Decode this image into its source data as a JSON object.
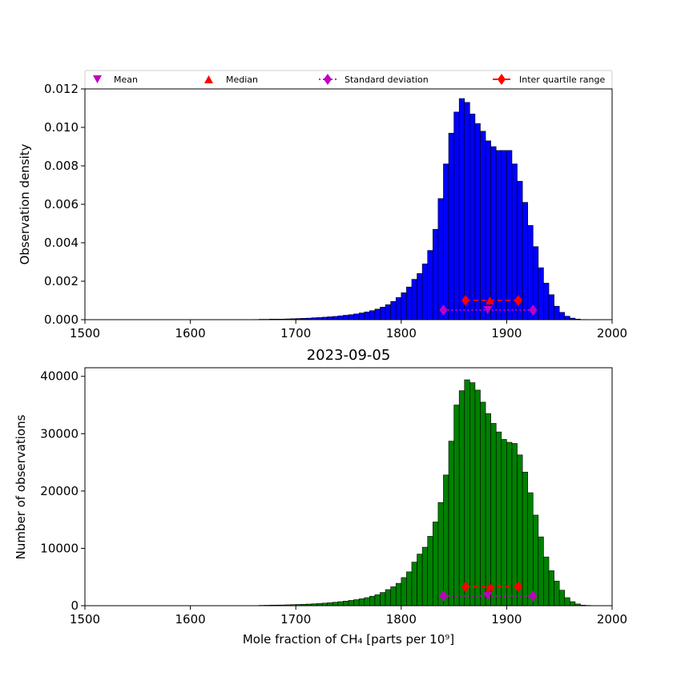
{
  "chart_data": [
    {
      "type": "bar",
      "panel": "top",
      "title": "",
      "xlabel": "",
      "ylabel": "Observation density",
      "xlim": [
        1500,
        2000
      ],
      "ylim": [
        0,
        0.012
      ],
      "xticks": [
        "1500",
        "1600",
        "1700",
        "1800",
        "1900",
        "2000"
      ],
      "yticks": [
        "0.000",
        "0.002",
        "0.004",
        "0.006",
        "0.008",
        "0.010",
        "0.012"
      ],
      "bar_color": "#0000ff",
      "bin_start": 1660,
      "bin_width": 5,
      "values": [
        1e-05,
        2e-05,
        2e-05,
        3e-05,
        3e-05,
        3e-05,
        4e-05,
        5e-05,
        6e-05,
        7e-05,
        8e-05,
        0.0001,
        0.00011,
        0.00013,
        0.00015,
        0.00017,
        0.0002,
        0.00023,
        0.00026,
        0.0003,
        0.00035,
        0.0004,
        0.00047,
        0.00055,
        0.00065,
        0.00078,
        0.00095,
        0.00115,
        0.0014,
        0.0017,
        0.0021,
        0.0024,
        0.0029,
        0.0036,
        0.0047,
        0.0063,
        0.0081,
        0.0097,
        0.0108,
        0.0115,
        0.0113,
        0.0107,
        0.0102,
        0.0098,
        0.0093,
        0.009,
        0.0088,
        0.0088,
        0.0088,
        0.0081,
        0.0072,
        0.0061,
        0.0049,
        0.0038,
        0.0027,
        0.0019,
        0.0013,
        0.0007,
        0.00038,
        0.00018,
        8e-05,
        3e-05,
        1e-05,
        5e-06
      ],
      "stats": {
        "mean": 1882,
        "median": 1884,
        "std_range": [
          1840,
          1925
        ],
        "iqr_range": [
          1861,
          1911
        ],
        "std_y": 0.0005,
        "iqr_y": 0.001
      }
    },
    {
      "type": "bar",
      "panel": "bottom",
      "title": "2023-09-05",
      "xlabel": "Mole fraction of CH₄ [parts per 10⁹]",
      "ylabel": "Number of observations",
      "xlim": [
        1500,
        2000
      ],
      "ylim": [
        0,
        41500
      ],
      "xticks": [
        "1500",
        "1600",
        "1700",
        "1800",
        "1900",
        "2000"
      ],
      "yticks": [
        "0",
        "10000",
        "20000",
        "30000",
        "40000"
      ],
      "bar_color": "#008000",
      "bin_start": 1660,
      "bin_width": 5,
      "values": [
        30,
        60,
        80,
        100,
        110,
        120,
        150,
        180,
        210,
        250,
        280,
        330,
        380,
        450,
        520,
        600,
        700,
        800,
        920,
        1050,
        1200,
        1400,
        1650,
        1900,
        2300,
        2800,
        3300,
        3900,
        4900,
        5900,
        7600,
        9000,
        10200,
        12100,
        14600,
        18000,
        22800,
        28700,
        35000,
        37500,
        39400,
        38900,
        37600,
        35500,
        33500,
        31800,
        30300,
        29000,
        28500,
        28300,
        26300,
        23300,
        19700,
        15800,
        12000,
        8500,
        6100,
        4300,
        2700,
        1400,
        700,
        300,
        100,
        50
      ],
      "stats": {
        "mean": 1882,
        "median": 1884,
        "std_range": [
          1840,
          1925
        ],
        "iqr_range": [
          1861,
          1911
        ],
        "std_y": 1700,
        "iqr_y": 3300
      }
    }
  ],
  "legend": {
    "placement": "above-top-panel",
    "entries": [
      {
        "label": "Mean",
        "marker": "triangle-down",
        "color": "#bf00bf"
      },
      {
        "label": "Median",
        "marker": "triangle-up",
        "color": "#ff0000"
      },
      {
        "label": "Standard deviation",
        "marker": "diamond",
        "line": "dotted",
        "color": "#bf00bf"
      },
      {
        "label": "Inter quartile range",
        "marker": "diamond",
        "line": "solid",
        "color": "#ff0000"
      }
    ]
  }
}
